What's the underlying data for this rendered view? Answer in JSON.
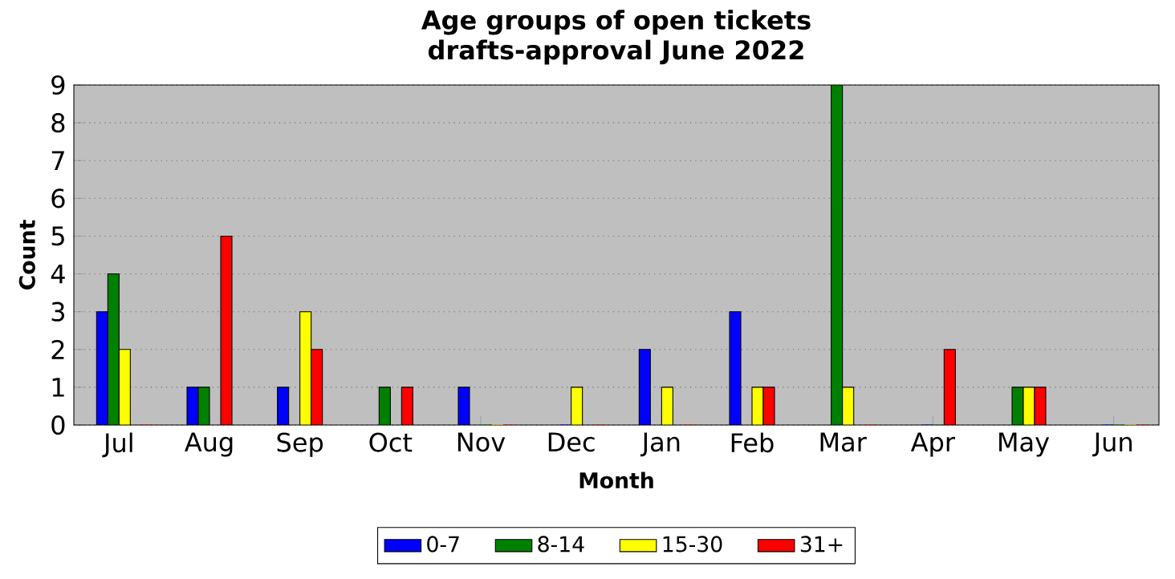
{
  "chart_data": {
    "type": "bar",
    "title": "Age groups of open tickets",
    "subtitle": "drafts-approval June 2022",
    "xlabel": "Month",
    "ylabel": "Count",
    "categories": [
      "Jul",
      "Aug",
      "Sep",
      "Oct",
      "Nov",
      "Dec",
      "Jan",
      "Feb",
      "Mar",
      "Apr",
      "May",
      "Jun"
    ],
    "series": [
      {
        "name": "0-7",
        "color": "#0000ff",
        "values": [
          3,
          1,
          1,
          0,
          1,
          0,
          2,
          3,
          0,
          0,
          0,
          0
        ]
      },
      {
        "name": "8-14",
        "color": "#008000",
        "values": [
          4,
          1,
          0,
          1,
          0,
          0,
          0,
          0,
          9,
          0,
          1,
          0
        ]
      },
      {
        "name": "15-30",
        "color": "#ffff00",
        "values": [
          2,
          0,
          3,
          0,
          0,
          1,
          1,
          1,
          1,
          0,
          1,
          0
        ]
      },
      {
        "name": "31+",
        "color": "#ff0000",
        "values": [
          0,
          5,
          2,
          1,
          0,
          0,
          0,
          1,
          0,
          2,
          1,
          0
        ]
      }
    ],
    "ylim": [
      0,
      9
    ],
    "yticks": [
      0,
      1,
      2,
      3,
      4,
      5,
      6,
      7,
      8,
      9
    ],
    "grid": "y",
    "legend": "bottom"
  }
}
